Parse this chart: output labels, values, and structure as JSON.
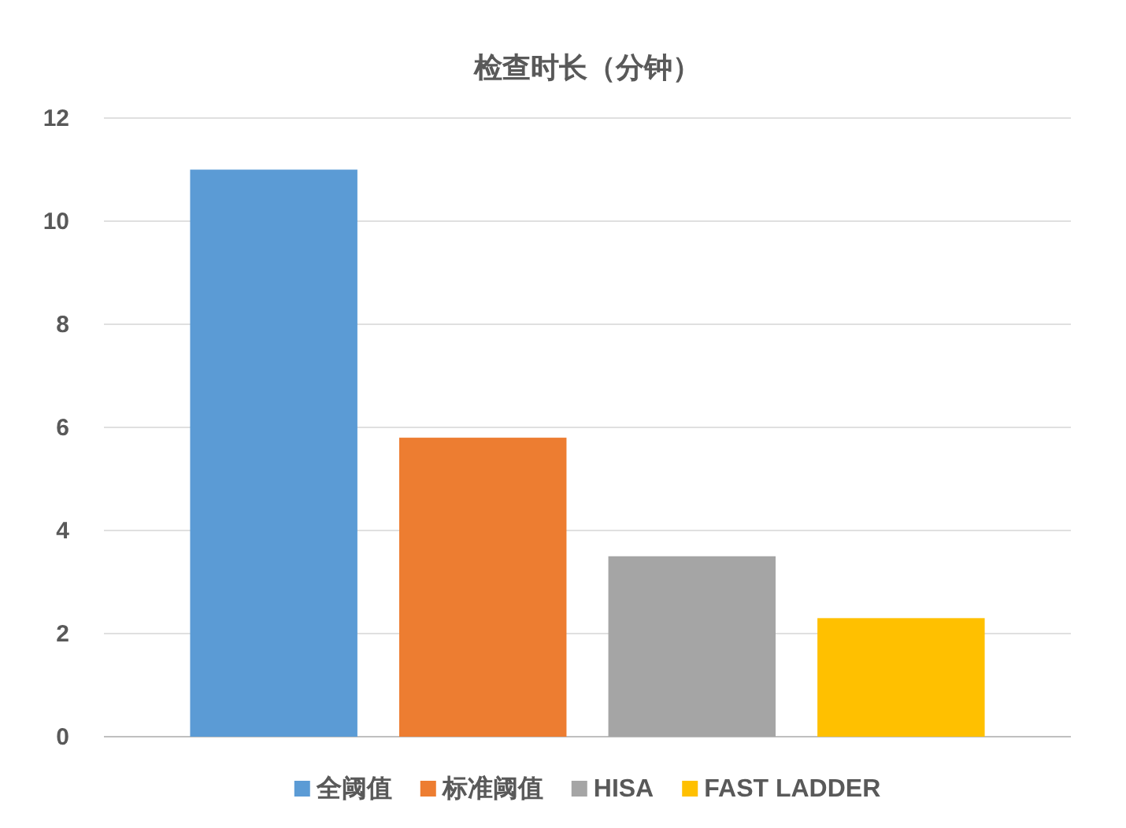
{
  "chart_data": {
    "type": "bar",
    "title": "检查时长（分钟）",
    "categories": [
      null
    ],
    "series": [
      {
        "name": "全阈值",
        "color": "#5b9bd5",
        "values": [
          11
        ]
      },
      {
        "name": "标准阈值",
        "color": "#ed7d31",
        "values": [
          5.8
        ]
      },
      {
        "name": "HISA",
        "color": "#a5a5a5",
        "values": [
          3.5
        ]
      },
      {
        "name": "FAST LADDER",
        "color": "#ffc000",
        "values": [
          2.3
        ]
      }
    ],
    "ylim": [
      0,
      12
    ],
    "yticks": [
      0,
      2,
      4,
      6,
      8,
      10,
      12
    ],
    "grid": "y",
    "legend": "bottom"
  }
}
